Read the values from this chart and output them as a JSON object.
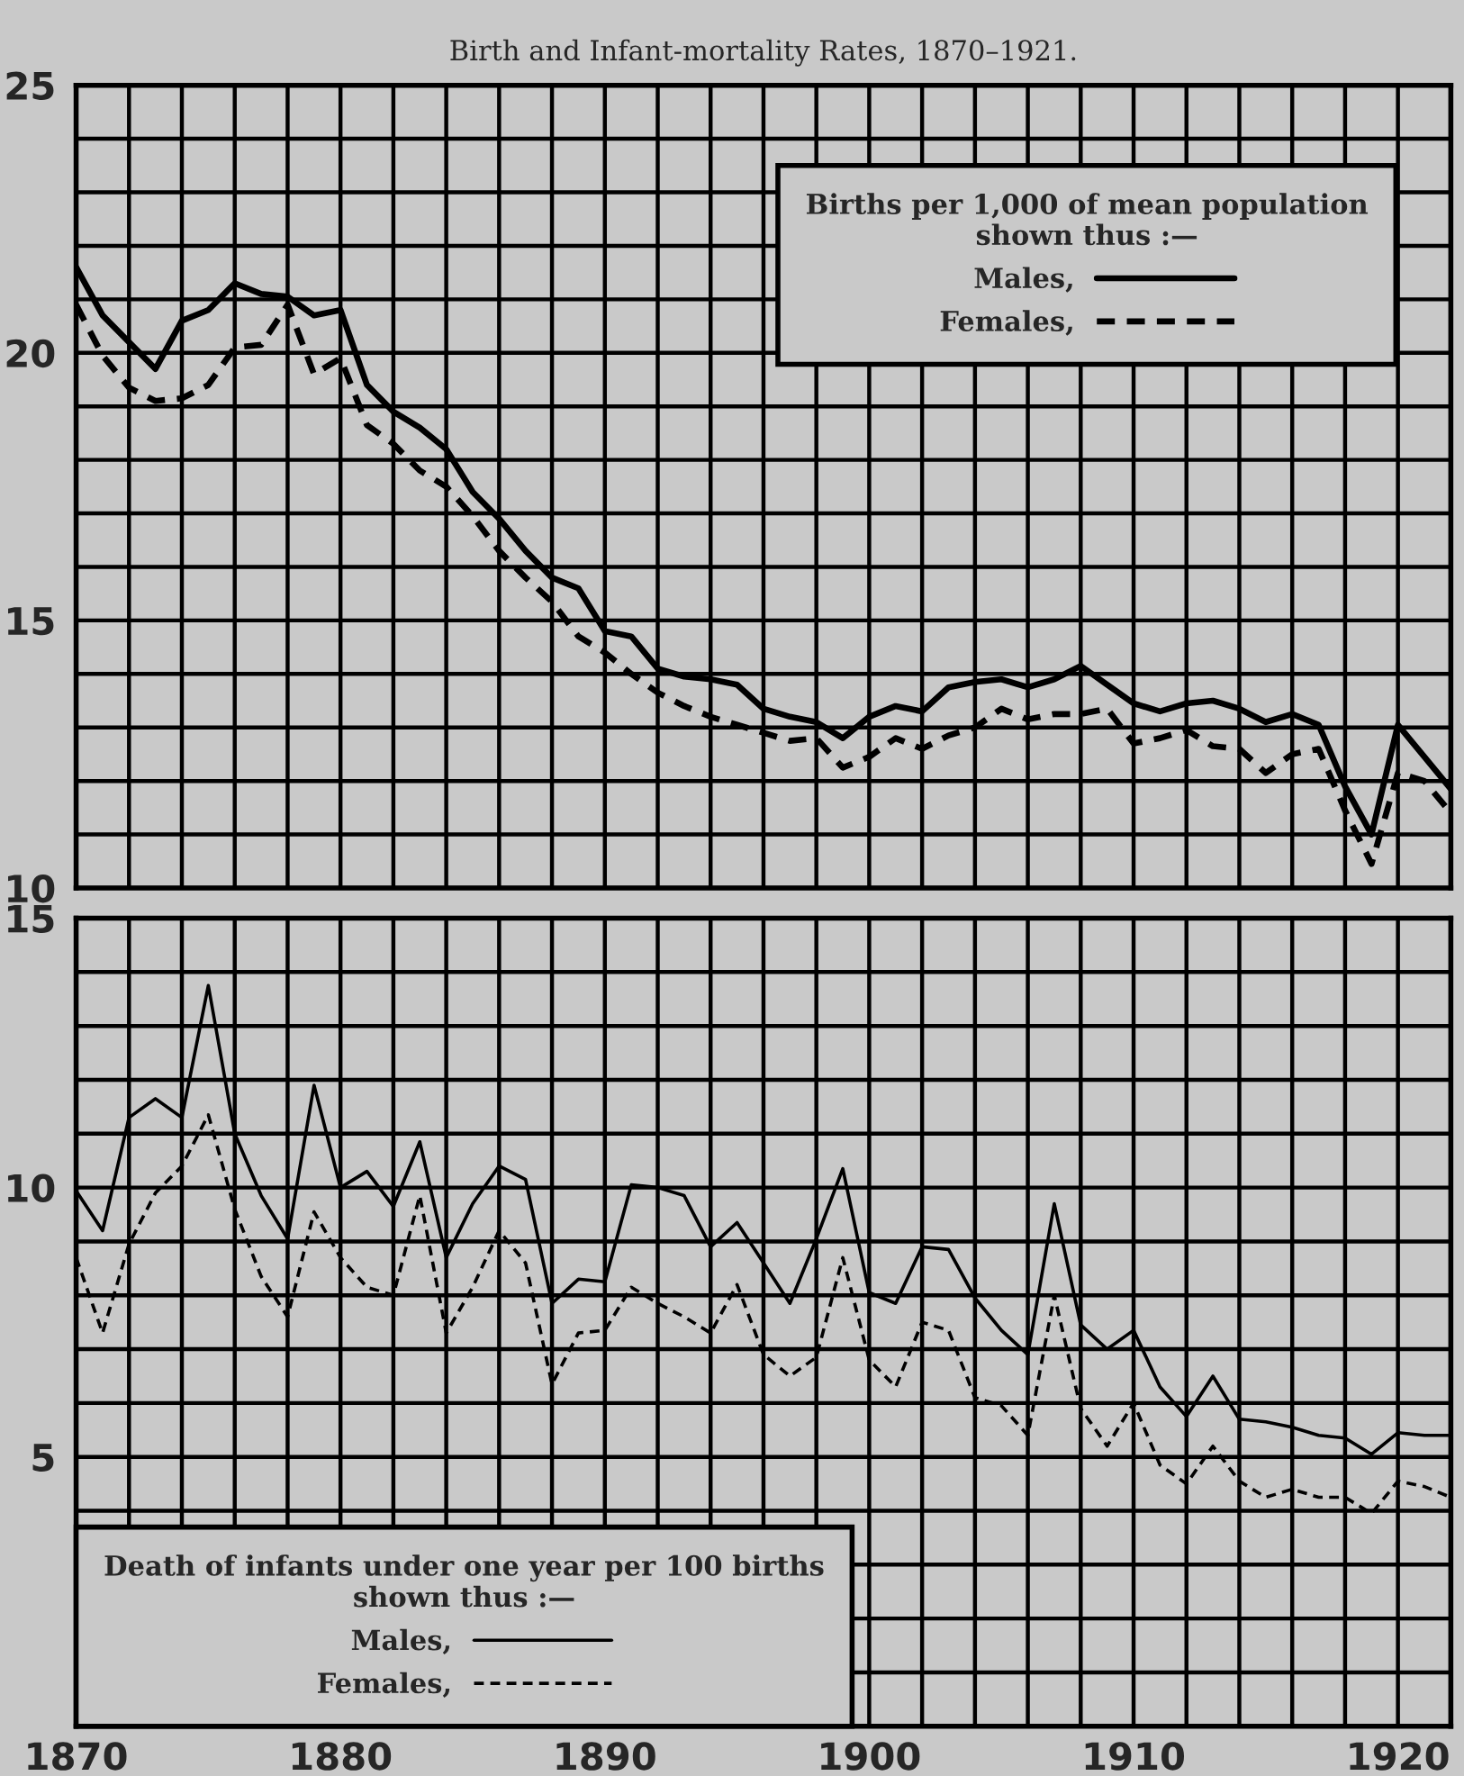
{
  "chart_data": [
    {
      "type": "line",
      "title": "Birth and Infant-mortality Rates, 1870–1921.",
      "legend_title": "Births per 1,000 of mean population\nshown thus :—",
      "legend": "top right",
      "grid": true,
      "tick_labels": "y",
      "x": [
        1870,
        1871,
        1872,
        1873,
        1874,
        1875,
        1876,
        1877,
        1878,
        1879,
        1880,
        1881,
        1882,
        1883,
        1884,
        1885,
        1886,
        1887,
        1888,
        1889,
        1890,
        1891,
        1892,
        1893,
        1894,
        1895,
        1896,
        1897,
        1898,
        1899,
        1900,
        1901,
        1902,
        1903,
        1904,
        1905,
        1906,
        1907,
        1908,
        1909,
        1910,
        1911,
        1912,
        1913,
        1914,
        1915,
        1916,
        1917,
        1918,
        1919,
        1920,
        1921,
        1922
      ],
      "xlim": [
        1870,
        1922
      ],
      "xticks": [
        1870,
        1872,
        1874,
        1876,
        1878,
        1880,
        1882,
        1884,
        1886,
        1888,
        1890,
        1892,
        1894,
        1896,
        1898,
        1900,
        1902,
        1904,
        1906,
        1908,
        1910,
        1912,
        1914,
        1916,
        1918,
        1920,
        1922
      ],
      "ylim": [
        10,
        25
      ],
      "yticks": [
        10,
        {
          "value": 11,
          "label": null
        },
        {
          "value": 12,
          "label": null
        },
        {
          "value": 13,
          "label": null
        },
        {
          "value": 14,
          "label": null
        },
        15,
        {
          "value": 16,
          "label": null
        },
        {
          "value": 17,
          "label": null
        },
        {
          "value": 18,
          "label": null
        },
        {
          "value": 19,
          "label": null
        },
        20,
        {
          "value": 21,
          "label": null
        },
        {
          "value": 22,
          "label": null
        },
        {
          "value": 23,
          "label": null
        },
        {
          "value": 24,
          "label": null
        },
        25
      ],
      "series": [
        {
          "name": "Males,",
          "color": "#000000",
          "line_style": "solid",
          "values": [
            21.6,
            20.7,
            20.2,
            19.7,
            20.6,
            20.8,
            21.3,
            21.1,
            21.05,
            20.7,
            20.8,
            19.4,
            18.9,
            18.6,
            18.2,
            17.4,
            16.9,
            16.3,
            15.8,
            15.6,
            14.8,
            14.7,
            14.1,
            13.95,
            13.9,
            13.8,
            13.35,
            13.2,
            13.1,
            12.8,
            13.2,
            13.4,
            13.3,
            13.75,
            13.85,
            13.9,
            13.75,
            13.9,
            14.15,
            13.8,
            13.45,
            13.3,
            13.45,
            13.5,
            13.35,
            13.1,
            13.25,
            13.05,
            11.9,
            11.0,
            13.05,
            12.45,
            11.85
          ]
        },
        {
          "name": "Females,",
          "color": "#000000",
          "line_style": "dashed",
          "values": [
            20.9,
            19.95,
            19.35,
            19.1,
            19.15,
            19.4,
            20.1,
            20.15,
            20.9,
            19.6,
            19.9,
            18.65,
            18.3,
            17.8,
            17.5,
            16.95,
            16.3,
            15.8,
            15.35,
            14.7,
            14.4,
            14.0,
            13.65,
            13.4,
            13.2,
            13.05,
            12.9,
            12.75,
            12.8,
            12.25,
            12.45,
            12.8,
            12.6,
            12.85,
            13.0,
            13.35,
            13.15,
            13.25,
            13.25,
            13.35,
            12.7,
            12.8,
            12.95,
            12.65,
            12.6,
            12.15,
            12.5,
            12.6,
            11.45,
            10.45,
            12.15,
            12.0,
            11.4
          ]
        }
      ]
    },
    {
      "type": "line",
      "legend_title": "Death of infants under one year per 100 births\nshown thus :—",
      "legend": "bottom left",
      "grid": true,
      "x": [
        1870,
        1871,
        1872,
        1873,
        1874,
        1875,
        1876,
        1877,
        1878,
        1879,
        1880,
        1881,
        1882,
        1883,
        1884,
        1885,
        1886,
        1887,
        1888,
        1889,
        1890,
        1891,
        1892,
        1893,
        1894,
        1895,
        1896,
        1897,
        1898,
        1899,
        1900,
        1901,
        1902,
        1903,
        1904,
        1905,
        1906,
        1907,
        1908,
        1909,
        1910,
        1911,
        1912,
        1913,
        1914,
        1915,
        1916,
        1917,
        1918,
        1919,
        1920,
        1921,
        1922
      ],
      "xlim": [
        1870,
        1922
      ],
      "xticks": [
        1870,
        {
          "value": 1872,
          "label": null
        },
        {
          "value": 1874,
          "label": null
        },
        {
          "value": 1876,
          "label": null
        },
        {
          "value": 1878,
          "label": null
        },
        1880,
        {
          "value": 1882,
          "label": null
        },
        {
          "value": 1884,
          "label": null
        },
        {
          "value": 1886,
          "label": null
        },
        {
          "value": 1888,
          "label": null
        },
        1890,
        {
          "value": 1892,
          "label": null
        },
        {
          "value": 1894,
          "label": null
        },
        {
          "value": 1896,
          "label": null
        },
        {
          "value": 1898,
          "label": null
        },
        1900,
        {
          "value": 1902,
          "label": null
        },
        {
          "value": 1904,
          "label": null
        },
        {
          "value": 1906,
          "label": null
        },
        {
          "value": 1908,
          "label": null
        },
        1910,
        {
          "value": 1912,
          "label": null
        },
        {
          "value": 1914,
          "label": null
        },
        {
          "value": 1916,
          "label": null
        },
        {
          "value": 1918,
          "label": null
        },
        1920,
        {
          "value": 1922,
          "label": null
        }
      ],
      "ylim": [
        0,
        15
      ],
      "yticks": [
        {
          "value": 0,
          "label": null
        },
        {
          "value": 1,
          "label": null
        },
        {
          "value": 2,
          "label": null
        },
        {
          "value": 3,
          "label": null
        },
        {
          "value": 4,
          "label": null
        },
        5,
        {
          "value": 6,
          "label": null
        },
        {
          "value": 7,
          "label": null
        },
        {
          "value": 8,
          "label": null
        },
        {
          "value": 9,
          "label": null
        },
        10,
        {
          "value": 11,
          "label": null
        },
        {
          "value": 12,
          "label": null
        },
        {
          "value": 13,
          "label": null
        },
        {
          "value": 14,
          "label": null
        },
        15
      ],
      "series": [
        {
          "name": "Males,",
          "color": "#000000",
          "line_style": "solid",
          "values": [
            9.94,
            9.2,
            11.3,
            11.65,
            11.3,
            13.75,
            11.0,
            9.85,
            9.05,
            11.9,
            10.0,
            10.3,
            9.65,
            10.85,
            8.7,
            9.7,
            10.4,
            10.15,
            7.85,
            8.3,
            8.25,
            10.05,
            10.0,
            9.85,
            8.9,
            9.35,
            8.6,
            7.85,
            9.05,
            10.35,
            8.05,
            7.85,
            8.9,
            8.85,
            7.95,
            7.35,
            6.9,
            9.7,
            7.45,
            7.0,
            7.35,
            6.3,
            5.75,
            6.5,
            5.7,
            5.65,
            5.55,
            5.4,
            5.35,
            5.05,
            5.45,
            5.4,
            5.4
          ]
        },
        {
          "name": "Females,",
          "color": "#000000",
          "line_style": "dashed",
          "values": [
            8.7,
            7.3,
            8.95,
            9.9,
            10.4,
            11.35,
            9.6,
            8.35,
            7.6,
            9.55,
            8.7,
            8.15,
            8.0,
            9.85,
            7.3,
            8.15,
            9.2,
            8.6,
            6.35,
            7.3,
            7.35,
            8.15,
            7.85,
            7.6,
            7.3,
            8.2,
            6.9,
            6.5,
            6.85,
            8.7,
            6.8,
            6.3,
            7.5,
            7.35,
            6.1,
            5.95,
            5.4,
            8.0,
            5.9,
            5.2,
            6.0,
            4.85,
            4.5,
            5.2,
            4.55,
            4.25,
            4.4,
            4.25,
            4.25,
            3.95,
            4.55,
            4.45,
            4.25
          ]
        }
      ]
    }
  ]
}
